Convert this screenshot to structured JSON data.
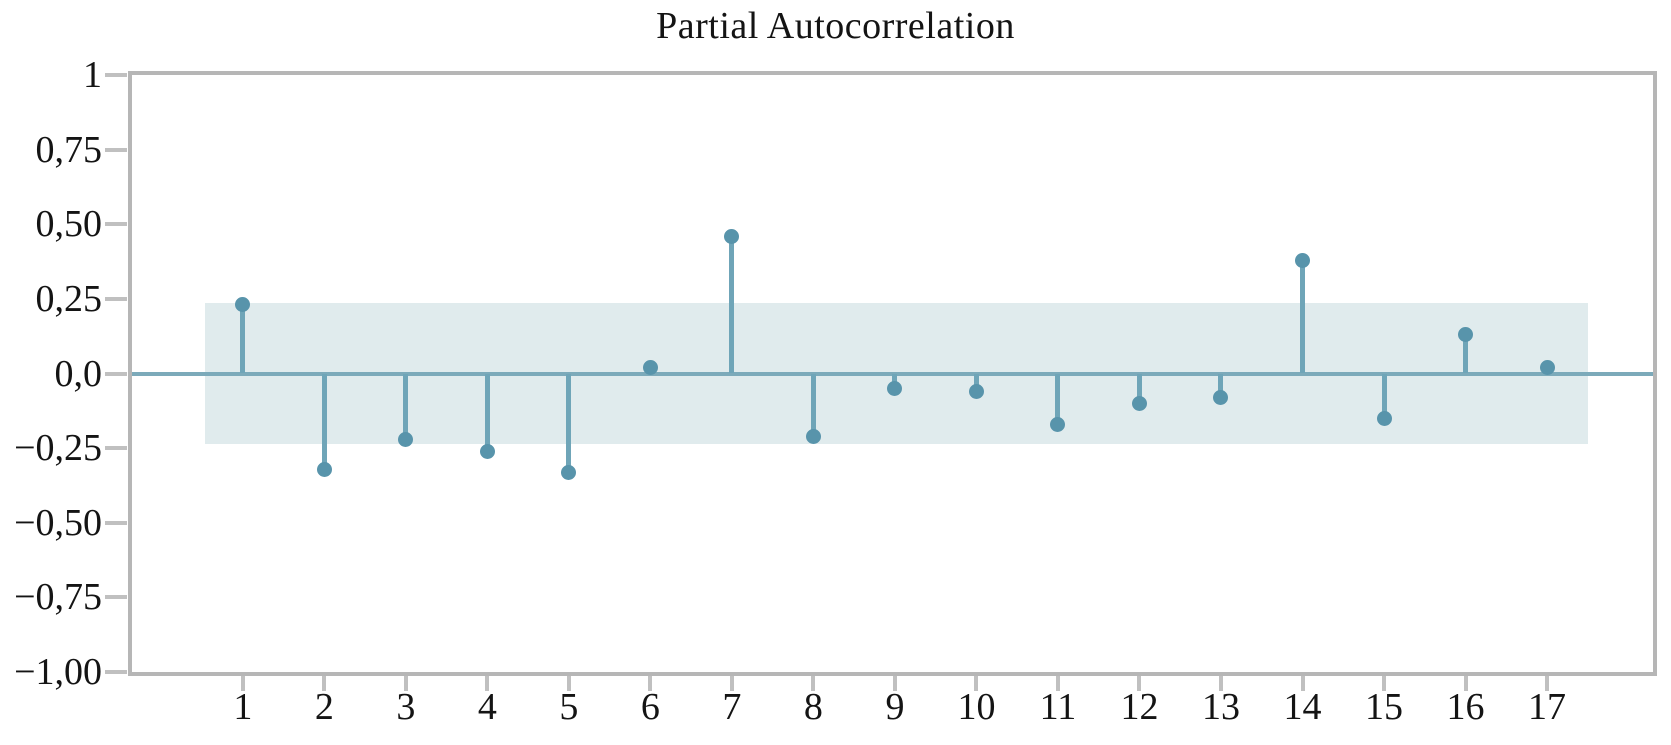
{
  "title": "Partial Autocorrelation",
  "chart_data": {
    "type": "stem",
    "title": "Partial Autocorrelation",
    "xlabel": "",
    "ylabel": "",
    "x": [
      1,
      2,
      3,
      4,
      5,
      6,
      7,
      8,
      9,
      10,
      11,
      12,
      13,
      14,
      15,
      16,
      17
    ],
    "values": [
      0.23,
      -0.32,
      -0.22,
      -0.26,
      -0.33,
      0.02,
      0.46,
      -0.21,
      -0.05,
      -0.06,
      -0.17,
      -0.1,
      -0.08,
      0.38,
      -0.15,
      0.13,
      0.02
    ],
    "confidence_band": {
      "lower": -0.235,
      "upper": 0.235,
      "x_start": 0.54,
      "x_end": 17.5
    },
    "xlim": [
      -0.36,
      18.3
    ],
    "ylim": [
      -1,
      1
    ],
    "grid": false,
    "legend": "none",
    "ytick_values": [
      1,
      0.75,
      0.5,
      0.25,
      0,
      -0.25,
      -0.5,
      -0.75,
      -1
    ],
    "ytick_labels": [
      "1",
      "0,75",
      "0,50",
      "0,25",
      "0,0",
      "−0,25",
      "−0,50",
      "−0,75",
      "−1,00"
    ],
    "xtick_labels": [
      "1",
      "2",
      "3",
      "4",
      "5",
      "6",
      "7",
      "8",
      "9",
      "10",
      "11",
      "12",
      "13",
      "14",
      "15",
      "16",
      "17"
    ],
    "colors": {
      "stem": "#6fa5b8",
      "dot": "#5894ab",
      "band": "#e0ebed",
      "zero_line": "#7caaba",
      "axis_border": "#b6b6b6",
      "tick": "#c0c0c0",
      "text": "#141414"
    }
  }
}
